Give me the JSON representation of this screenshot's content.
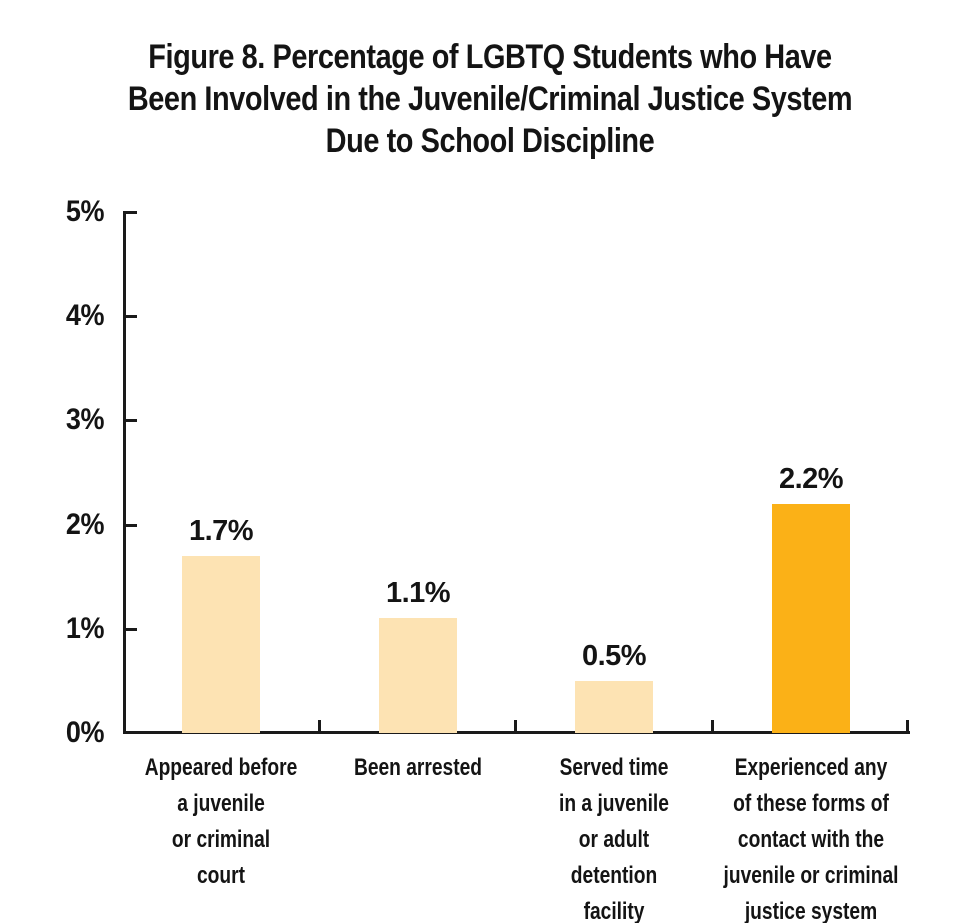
{
  "chart_data": {
    "type": "bar",
    "title": "Figure 8. Percentage of LGBTQ Students who Have Been Involved in the Juvenile/Criminal Justice System Due to School Discipline",
    "title_lines": [
      "Figure 8. Percentage of LGBTQ Students who Have",
      "Been Involved in the Juvenile/Criminal Justice System",
      "Due to School Discipline"
    ],
    "categories": [
      "Appeared before a juvenile or criminal court",
      "Been arrested",
      "Served time in a juvenile or adult detention facility",
      "Experienced any of these forms of contact with the juvenile or criminal justice system"
    ],
    "category_lines": [
      [
        "Appeared before",
        "a juvenile",
        "or criminal",
        "court"
      ],
      [
        "Been arrested"
      ],
      [
        "Served time",
        "in a juvenile",
        "or adult",
        "detention",
        "facility"
      ],
      [
        "Experienced any",
        "of these forms of",
        "contact with the",
        "juvenile or criminal",
        "justice system"
      ]
    ],
    "values": [
      1.7,
      1.1,
      0.5,
      2.2
    ],
    "value_labels": [
      "1.7%",
      "1.1%",
      "0.5%",
      "2.2%"
    ],
    "ylim": [
      0,
      5
    ],
    "ytick_labels": [
      "5%",
      "4%",
      "3%",
      "2%",
      "1%",
      "0%"
    ],
    "grid": false,
    "legend": "none",
    "xlabel": "",
    "ylabel": "",
    "bar_colors": [
      "#FDE3B3",
      "#FDE3B3",
      "#FDE3B3",
      "#FBB117"
    ],
    "highlight_index": 3,
    "axis_color": "#1A1A1A",
    "text_color": "#141414",
    "background_color": "#FFFFFF"
  }
}
